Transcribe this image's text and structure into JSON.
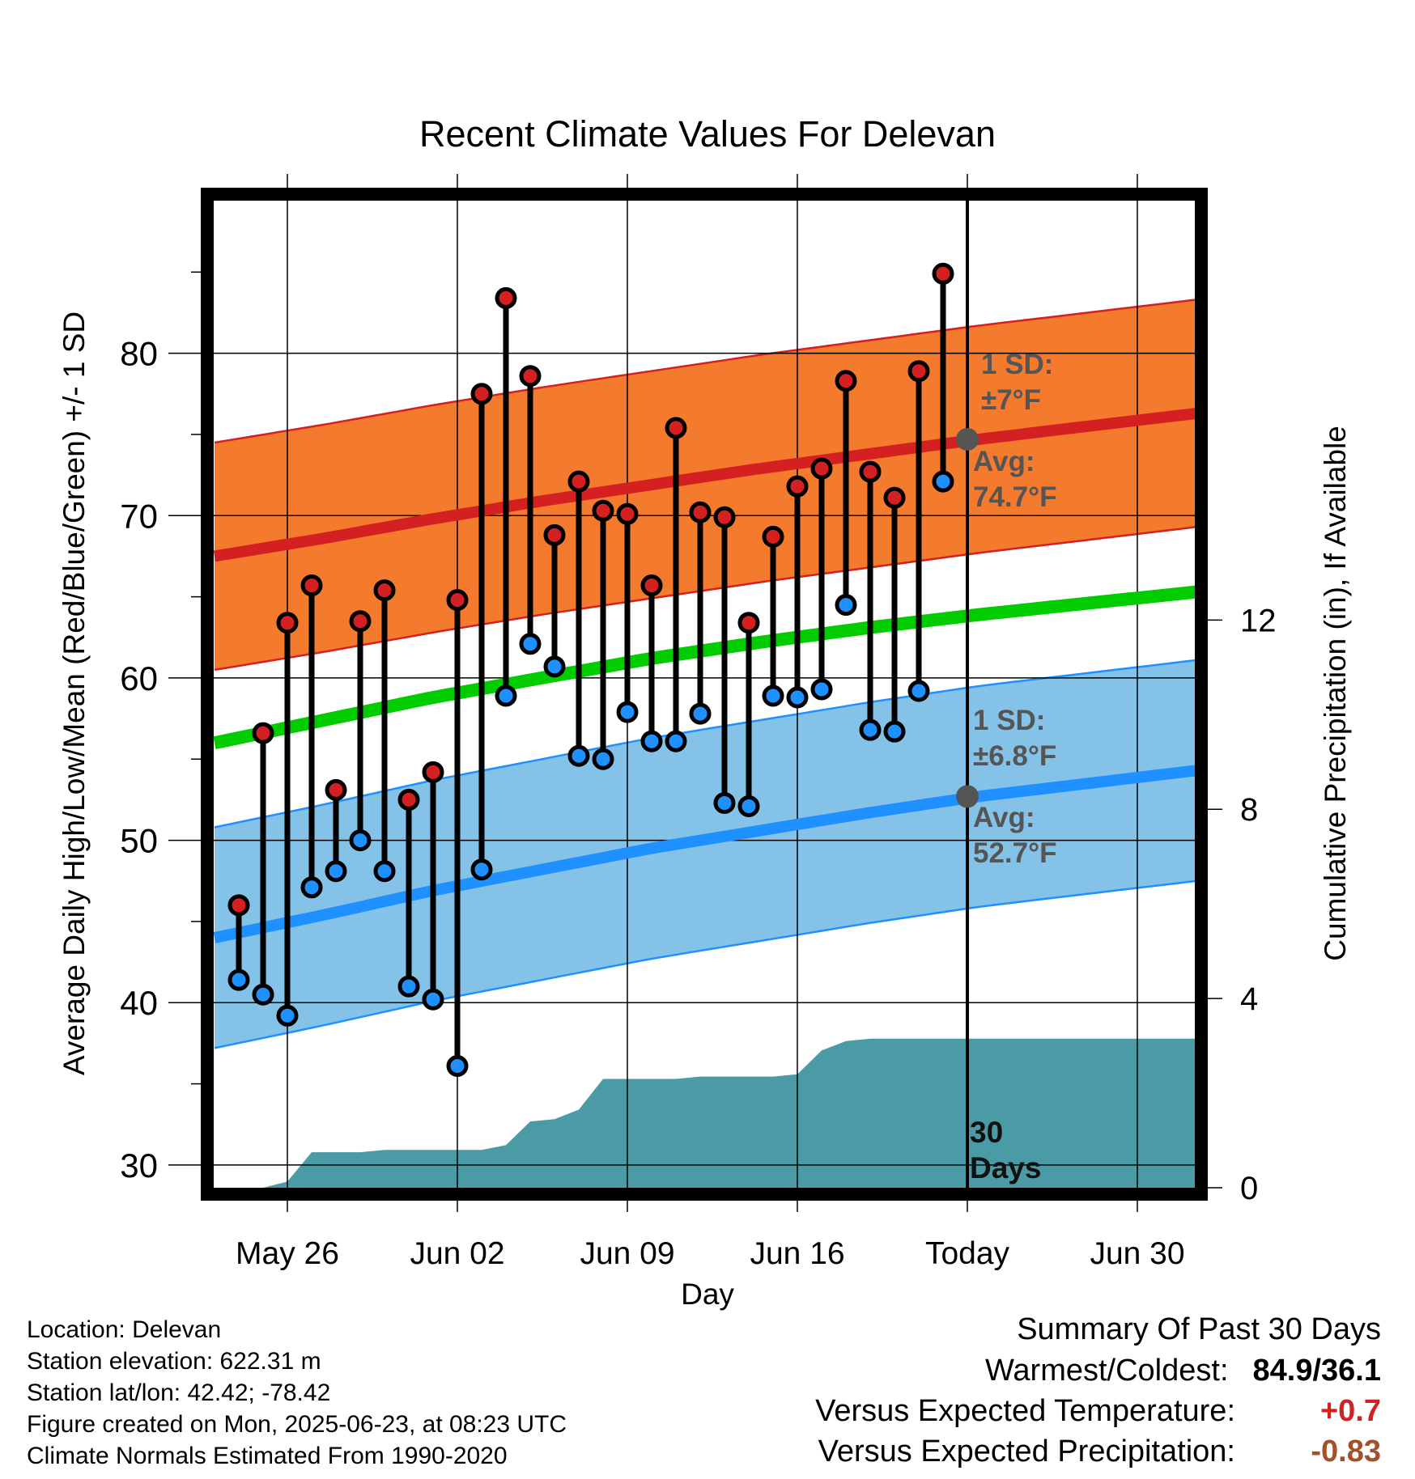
{
  "chart_data": {
    "type": "line",
    "title": "Recent Climate Values For Delevan",
    "xlabel": "Day",
    "ylabel": "Average Daily High/Low/Mean (Red/Blue/Green) +/- 1 SD",
    "ylabel_right": "Cumulative Precipitation (in), If Available",
    "x_tick_labels": [
      "May 26",
      "Jun 02",
      "Jun 09",
      "Jun 16",
      "Today",
      "Jun 30"
    ],
    "y_ticks": [
      30,
      40,
      50,
      60,
      70,
      80
    ],
    "y2_ticks": [
      0,
      4,
      8,
      12
    ],
    "ylim": [
      28.5,
      89.5
    ],
    "y2lim": [
      0,
      20.9
    ],
    "grid": true,
    "daily_highs": [
      46.0,
      56.6,
      63.4,
      65.7,
      53.1,
      63.5,
      65.4,
      52.5,
      54.2,
      64.8,
      77.5,
      83.4,
      78.6,
      68.8,
      72.1,
      70.3,
      70.1,
      65.7,
      75.4,
      70.2,
      69.9,
      63.4,
      68.7,
      71.8,
      72.9,
      78.3,
      72.7,
      71.1,
      78.9,
      84.9
    ],
    "daily_lows": [
      41.4,
      40.5,
      39.2,
      47.1,
      48.1,
      50.0,
      48.1,
      41.0,
      40.2,
      36.1,
      48.2,
      58.9,
      62.1,
      60.7,
      55.2,
      55.0,
      57.9,
      56.1,
      56.1,
      57.8,
      52.3,
      52.1,
      58.9,
      58.8,
      59.3,
      64.5,
      56.8,
      56.7,
      59.2,
      72.1
    ],
    "normal_high": [
      67.5,
      68.6,
      69.8,
      70.9,
      71.9,
      72.9,
      73.8,
      74.7,
      75.5,
      76.3
    ],
    "normal_high_sd": 7,
    "normal_mean": [
      56.0,
      57.4,
      58.8,
      60.0,
      61.2,
      62.2,
      63.1,
      63.9,
      64.6,
      65.3
    ],
    "normal_low": [
      44.0,
      45.4,
      46.9,
      48.2,
      49.5,
      50.6,
      51.7,
      52.7,
      53.5,
      54.3
    ],
    "normal_low_sd": 6.8,
    "cumulative_precip": [
      0,
      0,
      0,
      0.13,
      0.75,
      0.75,
      0.75,
      0.8,
      0.8,
      0.8,
      0.8,
      0.8,
      0.9,
      1.4,
      1.45,
      1.65,
      2.3,
      2.3,
      2.3,
      2.3,
      2.35,
      2.35,
      2.35,
      2.35,
      2.4,
      2.9,
      3.1,
      3.15,
      3.15,
      3.15,
      3.15,
      3.15,
      3.15,
      3.15,
      3.15,
      3.15,
      3.15,
      3.15,
      3.15,
      3.15
    ],
    "annotations": {
      "high_sd": "1 SD:",
      "high_sd_value": "±7°F",
      "high_avg": "Avg:",
      "high_avg_value": "74.7°F",
      "low_sd": "1 SD:",
      "low_sd_value": "±6.8°F",
      "low_avg": "Avg:",
      "low_avg_value": "52.7°F",
      "days_line1": "30",
      "days_line2": "Days"
    },
    "colors": {
      "high_band": "#f47a2e",
      "high_line": "#d42020",
      "mean_line": "#00cc00",
      "low_band": "#85c2e8",
      "low_line": "#1e90ff",
      "precip": "#4a9ba6",
      "high_dot": "#d42020",
      "low_dot": "#1e90ff"
    }
  },
  "info": {
    "location": "Location: Delevan",
    "elevation": "Station elevation: 622.31 m",
    "latlon": "Station lat/lon: 42.42; -78.42",
    "created": "Figure created on Mon, 2025-06-23, at 08:23 UTC",
    "normals": "Climate Normals Estimated From 1990-2020"
  },
  "summary": {
    "heading": "Summary Of Past 30 Days",
    "warmest_label": "Warmest/Coldest:",
    "warmest_value": "84.9/36.1",
    "temp_label": "Versus Expected Temperature:",
    "temp_value": "+0.7",
    "temp_color": "#d42020",
    "precip_label": "Versus Expected Precipitation:",
    "precip_value": "-0.83",
    "precip_color": "#a0522d"
  }
}
